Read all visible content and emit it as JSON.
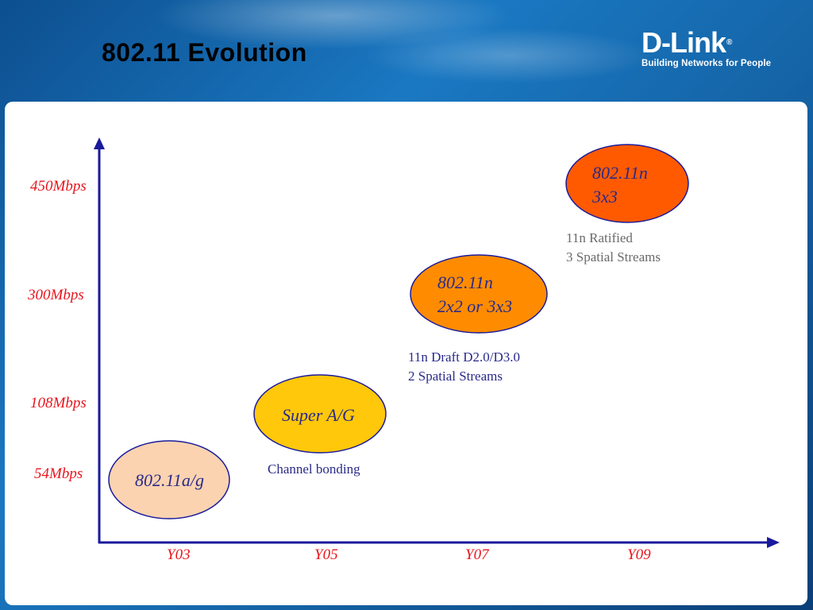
{
  "title": "802.11 Evolution",
  "logo": {
    "word": "D-Link",
    "registered": "®",
    "tagline": "Building Networks for People"
  },
  "y_axis_labels": [
    "450Mbps",
    "300Mbps",
    "108Mbps",
    "54Mbps"
  ],
  "x_axis_labels": [
    "Y03",
    "Y05",
    "Y07",
    "Y09"
  ],
  "nodes": [
    {
      "line1": "802.11a/g",
      "line2": ""
    },
    {
      "line1": "Super A/G",
      "line2": ""
    },
    {
      "line1": "802.11n",
      "line2": "2x2 or 3x3"
    },
    {
      "line1": "802.11n",
      "line2": "3x3"
    }
  ],
  "notes": [
    {
      "line1": "Channel bonding",
      "line2": ""
    },
    {
      "line1": "11n Draft D2.0/D3.0",
      "line2": "2 Spatial Streams"
    },
    {
      "line1": "11n Ratified",
      "line2": "3 Spatial Streams"
    }
  ],
  "colors": {
    "axis": "#1a1a9c",
    "label_red": "#e8141c",
    "node_fill": [
      "#fbd3b0",
      "#ffc80a",
      "#ff8c00",
      "#ff5a00"
    ],
    "node_text": [
      "#2a2a8a",
      "#2a2a8a",
      "#2a2a8a",
      "#2a2a8a"
    ],
    "note_text_blue": "#2a2a8a",
    "note_text_gray": "#6a6a6a"
  }
}
